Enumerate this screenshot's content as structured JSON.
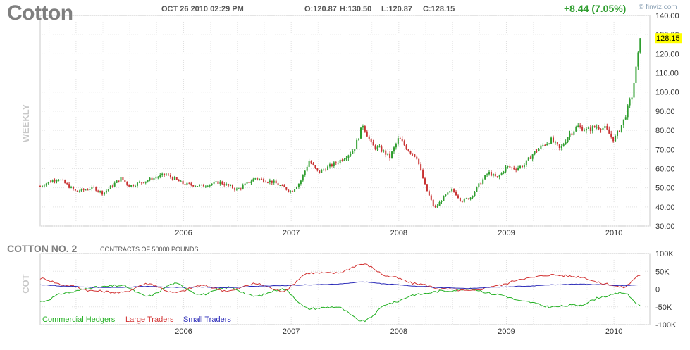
{
  "header": {
    "title": "Cotton",
    "datetime": "OCT 26 2010 02:29 PM",
    "open": "O:120.87",
    "high": "H:130.50",
    "low": "L:120.87",
    "close": "C:128.15",
    "change": "+8.44 (7.05%)",
    "brand": "finviz.com"
  },
  "cot": {
    "title": "COTTON NO. 2",
    "subtitle": "CONTRACTS OF 50000 POUNDS"
  },
  "colors": {
    "up": "#2f9e2f",
    "down": "#c83232",
    "commercial": "#22b022",
    "large": "#d23232",
    "small": "#2a2ab8",
    "last_price_highlight": "#ffff00"
  },
  "chart_data": [
    {
      "type": "candlestick",
      "name": "price",
      "period_label": "WEEKLY",
      "last_price_label": "128.15",
      "ylim": [
        30,
        140
      ],
      "y_ticks": [
        "140.00",
        "130.00",
        "120.00",
        "110.00",
        "100.00",
        "90.00",
        "80.00",
        "70.00",
        "60.00",
        "50.00",
        "40.00",
        "30.00"
      ],
      "x_ticks": [
        "2006",
        "2007",
        "2008",
        "2009",
        "2010"
      ],
      "grid": true,
      "date_range": [
        "2005-03",
        "2010-10"
      ],
      "close_path": [
        [
          "2005-03",
          51
        ],
        [
          "2005-05",
          55
        ],
        [
          "2005-07",
          48
        ],
        [
          "2005-09",
          50
        ],
        [
          "2005-10",
          47
        ],
        [
          "2005-12",
          55
        ],
        [
          "2006-01",
          51
        ],
        [
          "2006-03",
          54
        ],
        [
          "2006-05",
          57
        ],
        [
          "2006-07",
          52
        ],
        [
          "2006-09",
          51
        ],
        [
          "2006-11",
          53
        ],
        [
          "2007-01",
          49
        ],
        [
          "2007-03",
          55
        ],
        [
          "2007-05",
          53
        ],
        [
          "2007-07",
          48
        ],
        [
          "2007-08",
          53
        ],
        [
          "2007-09",
          64
        ],
        [
          "2007-10",
          58
        ],
        [
          "2007-12",
          63
        ],
        [
          "2008-01",
          66
        ],
        [
          "2008-02",
          70
        ],
        [
          "2008-03",
          83
        ],
        [
          "2008-04",
          72
        ],
        [
          "2008-05",
          70
        ],
        [
          "2008-06",
          66
        ],
        [
          "2008-07",
          76
        ],
        [
          "2008-08",
          70
        ],
        [
          "2008-09",
          66
        ],
        [
          "2008-10",
          50
        ],
        [
          "2008-11",
          39
        ],
        [
          "2008-12",
          45
        ],
        [
          "2009-01",
          49
        ],
        [
          "2009-02",
          43
        ],
        [
          "2009-03",
          45
        ],
        [
          "2009-04",
          52
        ],
        [
          "2009-05",
          58
        ],
        [
          "2009-06",
          55
        ],
        [
          "2009-07",
          61
        ],
        [
          "2009-08",
          60
        ],
        [
          "2009-09",
          62
        ],
        [
          "2009-10",
          68
        ],
        [
          "2009-11",
          72
        ],
        [
          "2009-12",
          75
        ],
        [
          "2010-01",
          70
        ],
        [
          "2010-02",
          78
        ],
        [
          "2010-03",
          82
        ],
        [
          "2010-04",
          80
        ],
        [
          "2010-05",
          82
        ],
        [
          "2010-06",
          81
        ],
        [
          "2010-07",
          75
        ],
        [
          "2010-08",
          84
        ],
        [
          "2010-09",
          98
        ],
        [
          "2010-10",
          128.15
        ]
      ]
    },
    {
      "type": "line",
      "name": "cot",
      "axis_label": "COT",
      "ylim": [
        -100000,
        100000
      ],
      "y_ticks": [
        "100K",
        "50K",
        "0",
        "-50K",
        "-100K"
      ],
      "x_ticks": [
        "2006",
        "2007",
        "2008",
        "2009",
        "2010"
      ],
      "grid": true,
      "legend_position": "bottom-left",
      "series": [
        {
          "name": "Commercial Hedgers",
          "values": [
            [
              "2005-03",
              -35000
            ],
            [
              "2005-06",
              -10000
            ],
            [
              "2005-09",
              5000
            ],
            [
              "2005-12",
              10000
            ],
            [
              "2006-03",
              -20000
            ],
            [
              "2006-06",
              15000
            ],
            [
              "2006-09",
              -15000
            ],
            [
              "2006-12",
              5000
            ],
            [
              "2007-03",
              -20000
            ],
            [
              "2007-06",
              0
            ],
            [
              "2007-09",
              -55000
            ],
            [
              "2007-12",
              -50000
            ],
            [
              "2008-03",
              -90000
            ],
            [
              "2008-06",
              -40000
            ],
            [
              "2008-09",
              -15000
            ],
            [
              "2008-12",
              -5000
            ],
            [
              "2009-03",
              0
            ],
            [
              "2009-06",
              -15000
            ],
            [
              "2009-09",
              -35000
            ],
            [
              "2009-12",
              -50000
            ],
            [
              "2010-03",
              -45000
            ],
            [
              "2010-06",
              -20000
            ],
            [
              "2010-08",
              -10000
            ],
            [
              "2010-10",
              -45000
            ]
          ]
        },
        {
          "name": "Large Traders",
          "values": [
            [
              "2005-03",
              30000
            ],
            [
              "2005-06",
              10000
            ],
            [
              "2005-09",
              -5000
            ],
            [
              "2005-12",
              -10000
            ],
            [
              "2006-03",
              15000
            ],
            [
              "2006-06",
              -10000
            ],
            [
              "2006-09",
              10000
            ],
            [
              "2006-12",
              -5000
            ],
            [
              "2007-03",
              15000
            ],
            [
              "2007-06",
              -5000
            ],
            [
              "2007-09",
              45000
            ],
            [
              "2007-12",
              45000
            ],
            [
              "2008-03",
              70000
            ],
            [
              "2008-06",
              35000
            ],
            [
              "2008-09",
              15000
            ],
            [
              "2008-12",
              0
            ],
            [
              "2009-03",
              -5000
            ],
            [
              "2009-06",
              10000
            ],
            [
              "2009-09",
              30000
            ],
            [
              "2009-12",
              40000
            ],
            [
              "2010-03",
              35000
            ],
            [
              "2010-06",
              15000
            ],
            [
              "2010-08",
              5000
            ],
            [
              "2010-10",
              40000
            ]
          ]
        },
        {
          "name": "Small Traders",
          "values": [
            [
              "2005-03",
              12000
            ],
            [
              "2005-06",
              8000
            ],
            [
              "2005-09",
              5000
            ],
            [
              "2005-12",
              5000
            ],
            [
              "2006-03",
              8000
            ],
            [
              "2006-06",
              5000
            ],
            [
              "2006-09",
              6000
            ],
            [
              "2006-12",
              4000
            ],
            [
              "2007-03",
              8000
            ],
            [
              "2007-06",
              10000
            ],
            [
              "2007-09",
              12000
            ],
            [
              "2007-12",
              14000
            ],
            [
              "2008-03",
              20000
            ],
            [
              "2008-06",
              14000
            ],
            [
              "2008-09",
              8000
            ],
            [
              "2008-12",
              4000
            ],
            [
              "2009-03",
              2000
            ],
            [
              "2009-06",
              6000
            ],
            [
              "2009-09",
              8000
            ],
            [
              "2009-12",
              12000
            ],
            [
              "2010-03",
              14000
            ],
            [
              "2010-06",
              12000
            ],
            [
              "2010-08",
              10000
            ],
            [
              "2010-10",
              12000
            ]
          ]
        }
      ]
    }
  ]
}
